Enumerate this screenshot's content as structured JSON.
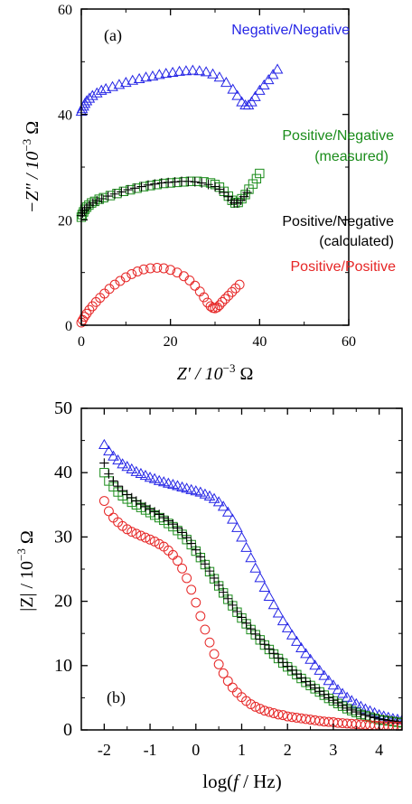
{
  "colors": {
    "blue": "#2626e6",
    "green": "#1a8c1a",
    "black": "#000000",
    "red": "#e62626"
  },
  "chart_data": [
    {
      "type": "scatter",
      "panel_label": "(a)",
      "xlabel_main": "Z′ / 10",
      "xlabel_exp": "−3",
      "xlabel_unit": " Ω",
      "ylabel_main": "−Z″ / 10",
      "ylabel_exp": "−3",
      "ylabel_unit": " Ω",
      "xlim": [
        0,
        60
      ],
      "ylim": [
        0,
        60
      ],
      "xticks": [
        "0",
        "20",
        "40",
        "60"
      ],
      "yticks": [
        "0",
        "20",
        "40",
        "60"
      ],
      "grid": false,
      "series": [
        {
          "name": "Negative/Negative",
          "color": "blue",
          "marker": "triangle",
          "x": [
            0.0,
            0.2,
            0.5,
            0.8,
            1.2,
            1.8,
            2.5,
            3.5,
            4.5,
            5.5,
            7.0,
            8.5,
            10.0,
            11.5,
            13.0,
            14.5,
            16.0,
            17.5,
            19.0,
            20.5,
            22.0,
            23.5,
            25.0,
            26.5,
            28.0,
            29.5,
            31.0,
            32.5,
            34.0,
            35.0,
            36.0,
            36.8,
            37.5,
            38.2,
            39.0,
            40.0,
            41.0,
            42.0,
            43.0,
            44.0
          ],
          "y": [
            40.5,
            41.0,
            41.5,
            42.0,
            42.5,
            43.0,
            43.5,
            44.0,
            44.5,
            44.8,
            45.2,
            45.6,
            46.0,
            46.4,
            46.7,
            47.0,
            47.2,
            47.5,
            47.7,
            47.9,
            48.1,
            48.2,
            48.3,
            48.2,
            48.0,
            47.6,
            47.0,
            46.0,
            44.7,
            43.5,
            42.3,
            41.7,
            41.7,
            42.3,
            43.3,
            44.5,
            45.5,
            46.5,
            47.5,
            48.5
          ]
        },
        {
          "name": "Positive/Negative (measured)",
          "color": "green",
          "marker": "square",
          "x": [
            0.0,
            0.2,
            0.5,
            0.8,
            1.2,
            1.7,
            2.3,
            3.0,
            4.0,
            5.0,
            6.5,
            8.0,
            9.5,
            11.0,
            12.5,
            14.0,
            15.5,
            17.0,
            18.5,
            20.0,
            21.5,
            23.0,
            24.5,
            26.0,
            27.5,
            29.0,
            30.0,
            31.0,
            32.0,
            33.0,
            33.8,
            34.5,
            35.2,
            36.0,
            36.8,
            37.6,
            38.5,
            39.3,
            40.0
          ],
          "y": [
            20.5,
            21.0,
            21.5,
            22.0,
            22.4,
            22.8,
            23.2,
            23.5,
            23.9,
            24.2,
            24.6,
            25.0,
            25.4,
            25.7,
            26.0,
            26.3,
            26.5,
            26.7,
            26.9,
            27.0,
            27.1,
            27.2,
            27.3,
            27.3,
            27.2,
            27.0,
            26.7,
            26.2,
            25.4,
            24.5,
            23.7,
            23.2,
            23.3,
            24.0,
            24.8,
            25.8,
            26.8,
            27.8,
            28.8
          ]
        },
        {
          "name": "Positive/Negative (calculated)",
          "color": "black",
          "marker": "plus",
          "x": [
            0.0,
            0.3,
            0.7,
            1.2,
            1.8,
            2.6,
            3.5,
            4.6,
            6.0,
            7.5,
            9.0,
            10.5,
            12.0,
            13.5,
            15.0,
            16.5,
            18.0,
            19.5,
            21.0,
            22.5,
            24.0,
            25.5,
            27.0,
            28.5,
            30.0,
            31.0,
            32.0,
            33.0,
            33.7,
            34.3,
            35.0,
            35.8,
            36.5,
            37.2
          ],
          "y": [
            20.8,
            21.3,
            21.8,
            22.3,
            22.8,
            23.2,
            23.6,
            24.0,
            24.5,
            24.9,
            25.3,
            25.7,
            26.0,
            26.3,
            26.6,
            26.8,
            27.0,
            27.1,
            27.2,
            27.3,
            27.3,
            27.2,
            27.0,
            26.7,
            26.3,
            25.8,
            25.2,
            24.4,
            23.7,
            23.2,
            23.2,
            23.7,
            24.4,
            25.2
          ]
        },
        {
          "name": "Positive/Positive",
          "color": "red",
          "marker": "circle",
          "x": [
            0.0,
            0.3,
            0.7,
            1.2,
            1.8,
            2.5,
            3.3,
            4.2,
            5.2,
            6.3,
            7.5,
            8.7,
            10.0,
            11.3,
            12.6,
            14.0,
            15.5,
            17.0,
            18.5,
            20.0,
            21.5,
            23.0,
            24.3,
            25.5,
            26.6,
            27.5,
            28.3,
            29.0,
            29.5,
            30.0,
            30.5,
            31.0,
            31.6,
            32.3,
            33.0,
            33.8,
            34.6,
            35.5
          ],
          "y": [
            0.5,
            1.0,
            1.6,
            2.2,
            2.9,
            3.6,
            4.4,
            5.2,
            6.0,
            6.9,
            7.7,
            8.4,
            9.1,
            9.7,
            10.2,
            10.6,
            10.8,
            10.9,
            10.8,
            10.5,
            10.0,
            9.3,
            8.5,
            7.5,
            6.4,
            5.3,
            4.3,
            3.6,
            3.3,
            3.2,
            3.4,
            3.8,
            4.4,
            5.0,
            5.6,
            6.3,
            7.0,
            7.7
          ]
        }
      ],
      "annotations": [
        {
          "text": "Negative/Negative",
          "color": "blue"
        },
        {
          "text": "Positive/Negative",
          "color": "green"
        },
        {
          "text": "(measured)",
          "color": "green"
        },
        {
          "text": "Positive/Negative",
          "color": "black"
        },
        {
          "text": "(calculated)",
          "color": "black"
        },
        {
          "text": "Positive/Positive",
          "color": "red"
        }
      ]
    },
    {
      "type": "scatter",
      "panel_label": "(b)",
      "xlabel_main": "log(",
      "xlabel_ital": "f",
      "xlabel_unit": " / Hz)",
      "ylabel_main": "|Z| / 10",
      "ylabel_exp": "−3",
      "ylabel_unit": " Ω",
      "xlim": [
        -2.5,
        4.5
      ],
      "ylim": [
        0,
        50
      ],
      "xticks": [
        "-2",
        "-1",
        "0",
        "1",
        "2",
        "3",
        "4"
      ],
      "yticks": [
        "0",
        "10",
        "20",
        "30",
        "40",
        "50"
      ],
      "grid": false,
      "series": [
        {
          "name": "Negative/Negative",
          "color": "blue",
          "marker": "triangle",
          "x": [
            -2.0,
            -1.9,
            -1.8,
            -1.7,
            -1.6,
            -1.5,
            -1.4,
            -1.3,
            -1.2,
            -1.1,
            -1.0,
            -0.9,
            -0.8,
            -0.7,
            -0.6,
            -0.5,
            -0.4,
            -0.3,
            -0.2,
            -0.1,
            0.0,
            0.1,
            0.2,
            0.3,
            0.4,
            0.5,
            0.6,
            0.7,
            0.8,
            0.9,
            1.0,
            1.1,
            1.2,
            1.3,
            1.4,
            1.5,
            1.6,
            1.7,
            1.8,
            1.9,
            2.0,
            2.1,
            2.2,
            2.3,
            2.4,
            2.5,
            2.6,
            2.7,
            2.8,
            2.9,
            3.0,
            3.1,
            3.2,
            3.3,
            3.4,
            3.5,
            3.6,
            3.7,
            3.8,
            3.9,
            4.0,
            4.1,
            4.2,
            4.3,
            4.4,
            4.5
          ],
          "y": [
            44.3,
            43.3,
            42.5,
            41.9,
            41.3,
            40.9,
            40.5,
            40.1,
            39.8,
            39.5,
            39.2,
            39.0,
            38.7,
            38.5,
            38.3,
            38.1,
            37.9,
            37.7,
            37.5,
            37.3,
            37.1,
            36.9,
            36.6,
            36.3,
            35.9,
            35.4,
            34.7,
            33.8,
            32.7,
            31.4,
            29.9,
            28.3,
            26.7,
            25.1,
            23.6,
            22.1,
            20.7,
            19.4,
            18.1,
            16.9,
            15.8,
            14.7,
            13.7,
            12.7,
            11.8,
            10.9,
            10.0,
            9.2,
            8.4,
            7.6,
            6.9,
            6.2,
            5.6,
            5.0,
            4.5,
            4.0,
            3.6,
            3.2,
            2.9,
            2.6,
            2.3,
            2.1,
            1.9,
            1.7,
            1.6,
            1.5
          ]
        },
        {
          "name": "Positive/Negative (measured)",
          "color": "green",
          "marker": "square",
          "x": [
            -2.0,
            -1.9,
            -1.8,
            -1.7,
            -1.6,
            -1.5,
            -1.4,
            -1.3,
            -1.2,
            -1.1,
            -1.0,
            -0.9,
            -0.8,
            -0.7,
            -0.6,
            -0.5,
            -0.4,
            -0.3,
            -0.2,
            -0.1,
            0.0,
            0.1,
            0.2,
            0.3,
            0.4,
            0.5,
            0.6,
            0.7,
            0.8,
            0.9,
            1.0,
            1.1,
            1.2,
            1.3,
            1.4,
            1.5,
            1.6,
            1.7,
            1.8,
            1.9,
            2.0,
            2.1,
            2.2,
            2.3,
            2.4,
            2.5,
            2.6,
            2.7,
            2.8,
            2.9,
            3.0,
            3.1,
            3.2,
            3.3,
            3.4,
            3.5,
            3.6,
            3.7,
            3.8,
            3.9,
            4.0,
            4.1,
            4.2,
            4.3,
            4.4,
            4.5
          ],
          "y": [
            40.0,
            38.7,
            37.8,
            37.0,
            36.4,
            35.9,
            35.4,
            35.0,
            34.6,
            34.2,
            33.8,
            33.4,
            33.0,
            32.6,
            32.1,
            31.6,
            31.0,
            30.4,
            29.6,
            28.8,
            27.8,
            26.8,
            25.7,
            24.6,
            23.5,
            22.4,
            21.3,
            20.3,
            19.3,
            18.3,
            17.4,
            16.5,
            15.6,
            14.8,
            14.0,
            13.2,
            12.5,
            11.8,
            11.1,
            10.4,
            9.8,
            9.2,
            8.6,
            8.0,
            7.4,
            6.9,
            6.4,
            5.9,
            5.4,
            4.9,
            4.5,
            4.1,
            3.7,
            3.3,
            3.0,
            2.7,
            2.4,
            2.2,
            2.0,
            1.8,
            1.6,
            1.5,
            1.4,
            1.3,
            1.2,
            1.1
          ]
        },
        {
          "name": "Positive/Negative (calculated)",
          "color": "black",
          "marker": "plus",
          "x": [
            -2.0,
            -1.9,
            -1.8,
            -1.7,
            -1.6,
            -1.5,
            -1.4,
            -1.3,
            -1.2,
            -1.1,
            -1.0,
            -0.9,
            -0.8,
            -0.7,
            -0.6,
            -0.5,
            -0.4,
            -0.3,
            -0.2,
            -0.1,
            0.0,
            0.1,
            0.2,
            0.3,
            0.4,
            0.5,
            0.6,
            0.7,
            0.8,
            0.9,
            1.0,
            1.1,
            1.2,
            1.3,
            1.4,
            1.5,
            1.6,
            1.7,
            1.8,
            1.9,
            2.0,
            2.1,
            2.2,
            2.3,
            2.4,
            2.5,
            2.6,
            2.7,
            2.8,
            2.9,
            3.0,
            3.1,
            3.2,
            3.3,
            3.4,
            3.5,
            3.6,
            3.7,
            3.8,
            3.9,
            4.0,
            4.1,
            4.2,
            4.3,
            4.4,
            4.5
          ],
          "y": [
            41.5,
            39.8,
            38.7,
            37.9,
            37.2,
            36.6,
            36.1,
            35.6,
            35.1,
            34.7,
            34.3,
            33.9,
            33.5,
            33.0,
            32.5,
            32.0,
            31.4,
            30.7,
            29.9,
            29.0,
            28.0,
            26.9,
            25.8,
            24.7,
            23.6,
            22.5,
            21.4,
            20.4,
            19.4,
            18.4,
            17.5,
            16.6,
            15.7,
            14.9,
            14.1,
            13.3,
            12.6,
            11.9,
            11.2,
            10.5,
            9.9,
            9.3,
            8.7,
            8.1,
            7.5,
            7.0,
            6.5,
            6.0,
            5.5,
            5.0,
            4.6,
            4.2,
            3.8,
            3.4,
            3.1,
            2.8,
            2.5,
            2.3,
            2.1,
            1.9,
            1.7,
            1.6,
            1.5,
            1.4,
            1.3,
            1.2
          ]
        },
        {
          "name": "Positive/Positive",
          "color": "red",
          "marker": "circle",
          "x": [
            -2.0,
            -1.9,
            -1.8,
            -1.7,
            -1.6,
            -1.5,
            -1.4,
            -1.3,
            -1.2,
            -1.1,
            -1.0,
            -0.9,
            -0.8,
            -0.7,
            -0.6,
            -0.5,
            -0.4,
            -0.3,
            -0.2,
            -0.1,
            0.0,
            0.1,
            0.2,
            0.3,
            0.4,
            0.5,
            0.6,
            0.7,
            0.8,
            0.9,
            1.0,
            1.1,
            1.2,
            1.3,
            1.4,
            1.5,
            1.6,
            1.7,
            1.8,
            1.9,
            2.0,
            2.1,
            2.2,
            2.3,
            2.4,
            2.5,
            2.6,
            2.7,
            2.8,
            2.9,
            3.0,
            3.1,
            3.2,
            3.3,
            3.4,
            3.5,
            3.6,
            3.7,
            3.8,
            3.9,
            4.0,
            4.1,
            4.2,
            4.3,
            4.4,
            4.5
          ],
          "y": [
            35.6,
            34.0,
            33.0,
            32.3,
            31.7,
            31.2,
            30.8,
            30.5,
            30.2,
            29.9,
            29.6,
            29.3,
            28.9,
            28.5,
            27.9,
            27.2,
            26.3,
            25.1,
            23.6,
            21.8,
            19.8,
            17.7,
            15.6,
            13.6,
            11.8,
            10.2,
            8.8,
            7.6,
            6.6,
            5.8,
            5.1,
            4.5,
            4.0,
            3.6,
            3.3,
            3.0,
            2.8,
            2.6,
            2.4,
            2.3,
            2.1,
            2.0,
            1.9,
            1.8,
            1.7,
            1.6,
            1.5,
            1.4,
            1.3,
            1.25,
            1.2,
            1.1,
            1.05,
            1.0,
            0.95,
            0.9,
            0.85,
            0.8,
            0.75,
            0.7,
            0.65,
            0.6,
            0.6,
            0.55,
            0.5,
            0.5
          ]
        }
      ]
    }
  ]
}
